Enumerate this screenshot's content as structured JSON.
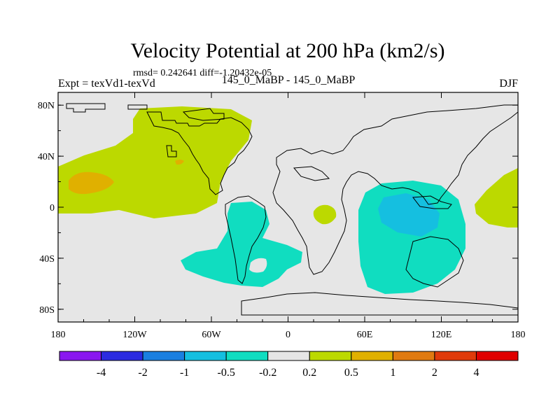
{
  "chart_data": {
    "type": "heatmap",
    "title": "Velocity Potential at 200 hPa (km2/s)",
    "subtitle": "rmsd= 0.242641  diff=-1.20432e-05",
    "left_label": "Expt = texVd1-texVd",
    "center_label": "145_0_MaBP - 145_0_MaBP",
    "right_label": "DJF",
    "x_ticks": [
      "180",
      "120W",
      "60W",
      "0",
      "60E",
      "120E",
      "180"
    ],
    "y_ticks": [
      "80N",
      "40N",
      "0",
      "40S",
      "80S"
    ],
    "lon_range": [
      -180,
      180
    ],
    "lat_range": [
      -90,
      90
    ],
    "colorbar": {
      "labels": [
        "-4",
        "-2",
        "-1",
        "-0.5",
        "-0.2",
        "0.2",
        "0.5",
        "1",
        "2",
        "4"
      ],
      "colors": [
        "#8a17f0",
        "#2b2be0",
        "#1a7fe0",
        "#15bfe0",
        "#10ddc0",
        "#e6e6e6",
        "#bcd900",
        "#e0b000",
        "#e07a10",
        "#e03a0a",
        "#e00000"
      ]
    },
    "colors": {
      "background": "#e6e6e6",
      "pos_weak": "#bcd900",
      "pos_mid": "#e0b000",
      "neg_weak": "#10ddc0",
      "neg_mid": "#15bfe0"
    }
  }
}
